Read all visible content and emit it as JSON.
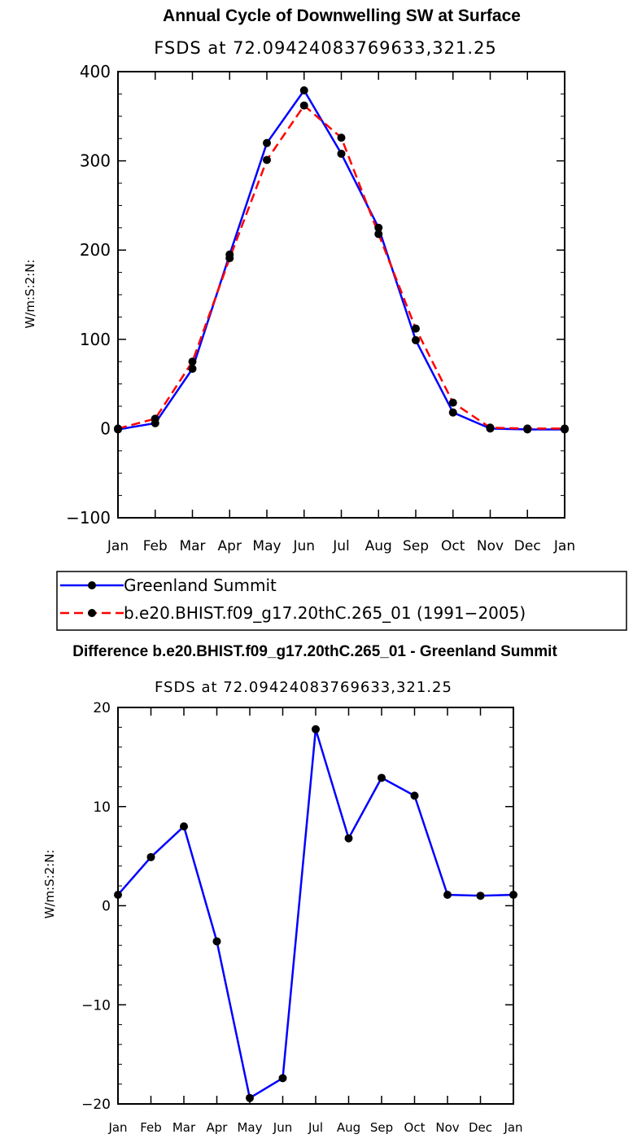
{
  "chart_data": [
    {
      "type": "line",
      "title": "Annual Cycle of Downwelling SW at Surface",
      "subtitle": "FSDS at 72.09424083769633,321.25",
      "xlabel": "",
      "ylabel": "W/m:S:2:N:",
      "ylim": [
        -100,
        400
      ],
      "yticks": [
        -100,
        0,
        100,
        200,
        300,
        400
      ],
      "yticklabels": [
        "−100",
        "0",
        "100",
        "200",
        "300",
        "400"
      ],
      "categories": [
        "Jan",
        "Feb",
        "Mar",
        "Apr",
        "May",
        "Jun",
        "Jul",
        "Aug",
        "Sep",
        "Oct",
        "Nov",
        "Dec",
        "Jan"
      ],
      "series": [
        {
          "name": "Greenland Summit",
          "color": "#0000ff",
          "dash": "solid",
          "values": [
            -1,
            6,
            67,
            195,
            320,
            379,
            308,
            225,
            99,
            18,
            0,
            -1,
            -1
          ]
        },
        {
          "name": "b.e20.BHIST.f09_g17.20thC.265_01 (1991−2005)",
          "color": "#ff0000",
          "dash": "dashed",
          "values": [
            0,
            11,
            75,
            191,
            301,
            362,
            326,
            218,
            112,
            29,
            1,
            0,
            0
          ]
        }
      ]
    },
    {
      "type": "line",
      "title": "Difference b.e20.BHIST.f09_g17.20thC.265_01 - Greenland Summit",
      "subtitle": "FSDS at 72.09424083769633,321.25",
      "xlabel": "",
      "ylabel": "W/m:S:2:N:",
      "ylim": [
        -20,
        20
      ],
      "yticks": [
        -20,
        -10,
        0,
        10,
        20
      ],
      "yticklabels": [
        "−20",
        "−10",
        "0",
        "10",
        "20"
      ],
      "categories": [
        "Jan",
        "Feb",
        "Mar",
        "Apr",
        "May",
        "Jun",
        "Jul",
        "Aug",
        "Sep",
        "Oct",
        "Nov",
        "Dec",
        "Jan"
      ],
      "series": [
        {
          "name": "Difference",
          "color": "#0000ff",
          "dash": "solid",
          "values": [
            1.1,
            4.9,
            8.0,
            -3.6,
            -19.4,
            -17.4,
            17.8,
            6.8,
            12.9,
            11.1,
            1.1,
            1.0,
            1.1
          ]
        }
      ]
    }
  ]
}
